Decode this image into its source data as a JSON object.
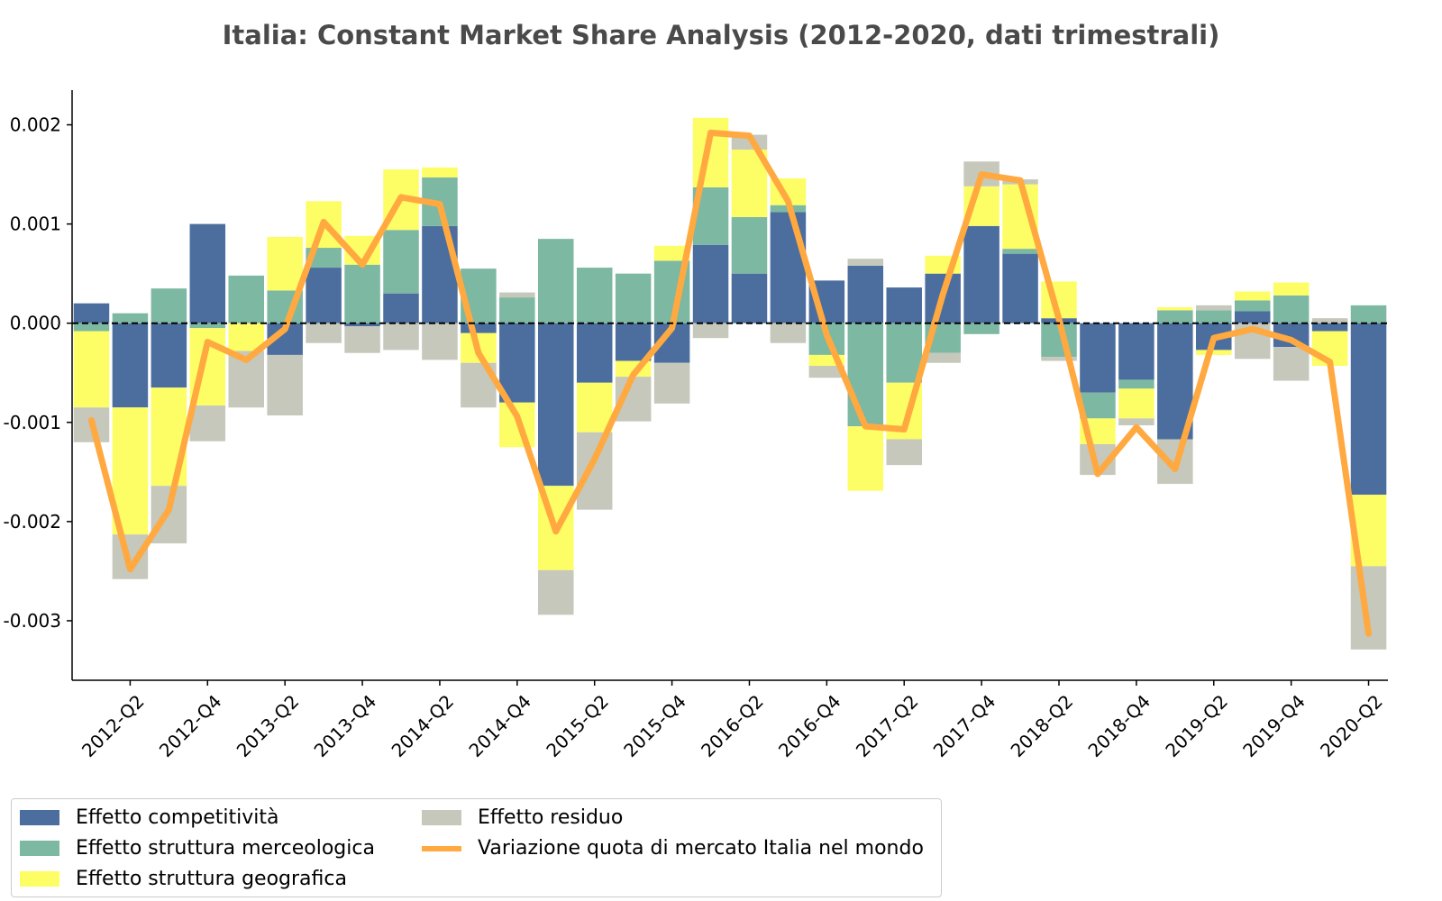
{
  "chart_data": {
    "type": "bar",
    "title": "Italia: Constant Market Share Analysis (2012-2020, dati trimestrali)",
    "xlabel": "",
    "ylabel": "",
    "ylim": [
      -0.0036,
      0.00235
    ],
    "yticks": [
      -0.003,
      -0.002,
      -0.001,
      0.0,
      0.001,
      0.002
    ],
    "ytick_labels": [
      "-0.003",
      "-0.002",
      "-0.001",
      "0.000",
      "0.001",
      "0.002"
    ],
    "stacked": true,
    "zero_line": "dashed",
    "grid": false,
    "legend_position": "bottom-left",
    "categories": [
      "2012-Q1",
      "2012-Q2",
      "2012-Q3",
      "2012-Q4",
      "2013-Q1",
      "2013-Q2",
      "2013-Q3",
      "2013-Q4",
      "2014-Q1",
      "2014-Q2",
      "2014-Q3",
      "2014-Q4",
      "2015-Q1",
      "2015-Q2",
      "2015-Q3",
      "2015-Q4",
      "2016-Q1",
      "2016-Q2",
      "2016-Q3",
      "2016-Q4",
      "2017-Q1",
      "2017-Q2",
      "2017-Q3",
      "2017-Q4",
      "2018-Q1",
      "2018-Q2",
      "2018-Q3",
      "2018-Q4",
      "2019-Q1",
      "2019-Q2",
      "2019-Q3",
      "2019-Q4",
      "2020-Q1",
      "2020-Q2"
    ],
    "tick_labels": [
      "2012-Q2",
      "2012-Q4",
      "2013-Q2",
      "2013-Q4",
      "2014-Q2",
      "2014-Q4",
      "2015-Q2",
      "2015-Q4",
      "2016-Q2",
      "2016-Q4",
      "2017-Q2",
      "2017-Q4",
      "2018-Q2",
      "2018-Q4",
      "2019-Q2",
      "2019-Q4",
      "2020-Q2"
    ],
    "series": [
      {
        "name": "Effetto competitività",
        "kind": "bar",
        "color": "#4c6e9e",
        "values": [
          0.0002,
          -0.00085,
          -0.00065,
          0.001,
          0.0,
          -0.00032,
          0.00056,
          -3e-05,
          0.0003,
          0.00098,
          -0.0001,
          -0.0008,
          -0.00164,
          -0.0006,
          -0.00038,
          -0.0004,
          0.00079,
          0.0005,
          0.00112,
          0.00043,
          0.00058,
          0.00036,
          0.0005,
          0.00098,
          0.0007,
          5e-05,
          -0.0007,
          -0.00057,
          -0.00117,
          -0.00027,
          0.00012,
          -0.00024,
          -8e-05,
          -0.00173
        ]
      },
      {
        "name": "Effetto struttura merceologica",
        "kind": "bar",
        "color": "#7db8a2",
        "values": [
          -8e-05,
          0.0001,
          0.00035,
          -5e-05,
          0.00048,
          0.00033,
          0.0002,
          0.00059,
          0.00064,
          0.00049,
          0.00055,
          0.00026,
          0.00085,
          0.00056,
          0.0005,
          0.00063,
          0.00058,
          0.00057,
          7e-05,
          -0.00032,
          -0.00104,
          -0.0006,
          -0.0003,
          -0.00011,
          5e-05,
          -0.00034,
          -0.00026,
          -9e-05,
          0.00013,
          0.00013,
          0.00011,
          0.00028,
          0.0,
          0.00018
        ]
      },
      {
        "name": "Effetto struttura geografica",
        "kind": "bar",
        "color": "#fdfd65",
        "values": [
          -0.00077,
          -0.00128,
          -0.00099,
          -0.00078,
          -0.00028,
          0.00054,
          0.00047,
          0.00029,
          0.00061,
          0.0001,
          -0.0003,
          -0.00045,
          -0.00085,
          -0.0005,
          -0.00016,
          0.00015,
          0.0007,
          0.00068,
          0.00027,
          -0.00011,
          -0.00065,
          -0.00057,
          0.00018,
          0.0004,
          0.00065,
          0.00037,
          -0.00026,
          -0.0003,
          3e-05,
          -5e-05,
          9e-05,
          0.00013,
          -0.00035,
          -0.00072
        ]
      },
      {
        "name": "Effetto residuo",
        "kind": "bar",
        "color": "#c5c8bb",
        "values": [
          -0.00035,
          -0.00045,
          -0.00058,
          -0.00036,
          -0.00057,
          -0.00061,
          -0.0002,
          -0.00027,
          -0.00027,
          -0.00037,
          -0.00045,
          5e-05,
          -0.00045,
          -0.00078,
          -0.00045,
          -0.00041,
          -0.00015,
          0.00015,
          -0.0002,
          -0.00012,
          7e-05,
          -0.00026,
          -0.0001,
          0.00025,
          5e-05,
          -4e-05,
          -0.00031,
          -7e-05,
          -0.00045,
          5e-05,
          -0.00036,
          -0.00034,
          5e-05,
          -0.00084
        ]
      },
      {
        "name": "Variazione quota di mercato Italia nel mondo",
        "kind": "line",
        "color": "#ffa940",
        "values": [
          -0.00098,
          -0.00248,
          -0.00188,
          -0.00019,
          -0.00037,
          -6e-05,
          0.00102,
          0.00059,
          0.00127,
          0.0012,
          -0.0003,
          -0.00094,
          -0.0021,
          -0.00137,
          -0.00052,
          -5e-05,
          0.00192,
          0.00189,
          0.00123,
          -0.00012,
          -0.00104,
          -0.00107,
          0.00029,
          0.0015,
          0.00144,
          4e-05,
          -0.00152,
          -0.00105,
          -0.00147,
          -0.00015,
          -6e-05,
          -0.00017,
          -0.00039,
          -0.00313
        ]
      }
    ]
  },
  "legend": {
    "items": [
      "Effetto competitività",
      "Effetto struttura merceologica",
      "Effetto struttura geografica",
      "Effetto residuo",
      "Variazione quota di mercato Italia nel mondo"
    ]
  }
}
